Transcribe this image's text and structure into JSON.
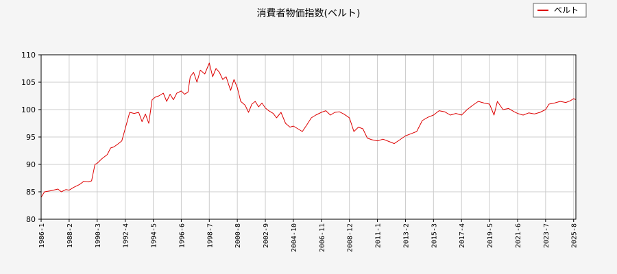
{
  "chart_data": {
    "type": "line",
    "title": "消費者物価指数(ベルト)",
    "xlabel": "",
    "ylabel": "",
    "xlim": [
      "1986-1",
      "2025-10"
    ],
    "ylim": [
      80,
      110
    ],
    "y_ticks": [
      80,
      85,
      90,
      95,
      100,
      105,
      110
    ],
    "x_ticks": [
      "1986-1",
      "1988-2",
      "1990-3",
      "1992-4",
      "1994-5",
      "1996-6",
      "1998-7",
      "2000-8",
      "2002-9",
      "2004-10",
      "2006-11",
      "2008-12",
      "2011-1",
      "2013-2",
      "2015-3",
      "2017-4",
      "2019-5",
      "2021-6",
      "2023-7",
      "2025-8"
    ],
    "grid": true,
    "legend_position": "top-right",
    "series": [
      {
        "name": "ベルト",
        "color": "#dd0000",
        "points": [
          [
            "1986-1",
            84.0
          ],
          [
            "1986-4",
            85.0
          ],
          [
            "1986-10",
            85.2
          ],
          [
            "1987-4",
            85.5
          ],
          [
            "1987-7",
            85.0
          ],
          [
            "1987-11",
            85.4
          ],
          [
            "1988-2",
            85.3
          ],
          [
            "1988-6",
            85.8
          ],
          [
            "1988-11",
            86.3
          ],
          [
            "1989-3",
            86.9
          ],
          [
            "1989-7",
            86.8
          ],
          [
            "1989-10",
            87.0
          ],
          [
            "1990-1",
            90.0
          ],
          [
            "1990-3",
            90.2
          ],
          [
            "1990-7",
            91.0
          ],
          [
            "1990-12",
            91.8
          ],
          [
            "1991-3",
            93.0
          ],
          [
            "1991-6",
            93.2
          ],
          [
            "1991-10",
            93.8
          ],
          [
            "1992-1",
            94.3
          ],
          [
            "1992-4",
            96.5
          ],
          [
            "1992-8",
            99.5
          ],
          [
            "1992-12",
            99.3
          ],
          [
            "1993-4",
            99.5
          ],
          [
            "1993-7",
            97.8
          ],
          [
            "1993-10",
            99.2
          ],
          [
            "1994-1",
            97.5
          ],
          [
            "1994-4",
            101.8
          ],
          [
            "1994-7",
            102.3
          ],
          [
            "1994-10",
            102.5
          ],
          [
            "1995-2",
            103.0
          ],
          [
            "1995-5",
            101.5
          ],
          [
            "1995-8",
            102.8
          ],
          [
            "1995-11",
            101.8
          ],
          [
            "1996-2",
            103.0
          ],
          [
            "1996-6",
            103.4
          ],
          [
            "1996-9",
            102.8
          ],
          [
            "1996-12",
            103.2
          ],
          [
            "1997-2",
            106.0
          ],
          [
            "1997-5",
            106.8
          ],
          [
            "1997-8",
            105.0
          ],
          [
            "1997-11",
            107.2
          ],
          [
            "1998-3",
            106.5
          ],
          [
            "1998-7",
            108.5
          ],
          [
            "1998-10",
            106.0
          ],
          [
            "1999-1",
            107.5
          ],
          [
            "1999-4",
            106.8
          ],
          [
            "1999-7",
            105.5
          ],
          [
            "1999-10",
            106.0
          ],
          [
            "2000-2",
            103.5
          ],
          [
            "2000-5",
            105.5
          ],
          [
            "2000-8",
            104.0
          ],
          [
            "2000-11",
            101.5
          ],
          [
            "2001-3",
            100.8
          ],
          [
            "2001-6",
            99.5
          ],
          [
            "2001-9",
            101.0
          ],
          [
            "2001-12",
            101.5
          ],
          [
            "2002-3",
            100.5
          ],
          [
            "2002-6",
            101.2
          ],
          [
            "2002-9",
            100.3
          ],
          [
            "2002-12",
            99.8
          ],
          [
            "2003-4",
            99.3
          ],
          [
            "2003-7",
            98.5
          ],
          [
            "2003-11",
            99.5
          ],
          [
            "2004-3",
            97.5
          ],
          [
            "2004-7",
            96.8
          ],
          [
            "2004-10",
            97.0
          ],
          [
            "2005-2",
            96.5
          ],
          [
            "2005-6",
            96.0
          ],
          [
            "2005-10",
            97.2
          ],
          [
            "2006-2",
            98.5
          ],
          [
            "2006-6",
            99.0
          ],
          [
            "2006-11",
            99.5
          ],
          [
            "2007-3",
            99.8
          ],
          [
            "2007-7",
            99.0
          ],
          [
            "2007-11",
            99.5
          ],
          [
            "2008-3",
            99.6
          ],
          [
            "2008-7",
            99.2
          ],
          [
            "2008-12",
            98.5
          ],
          [
            "2009-4",
            96.0
          ],
          [
            "2009-8",
            96.8
          ],
          [
            "2009-12",
            96.5
          ],
          [
            "2010-4",
            94.8
          ],
          [
            "2010-8",
            94.5
          ],
          [
            "2011-1",
            94.3
          ],
          [
            "2011-6",
            94.6
          ],
          [
            "2011-11",
            94.2
          ],
          [
            "2012-4",
            93.8
          ],
          [
            "2012-9",
            94.5
          ],
          [
            "2013-2",
            95.2
          ],
          [
            "2013-7",
            95.6
          ],
          [
            "2013-12",
            96.0
          ],
          [
            "2014-5",
            98.0
          ],
          [
            "2014-10",
            98.6
          ],
          [
            "2015-3",
            99.0
          ],
          [
            "2015-8",
            99.8
          ],
          [
            "2016-1",
            99.6
          ],
          [
            "2016-6",
            99.0
          ],
          [
            "2016-11",
            99.3
          ],
          [
            "2017-4",
            99.0
          ],
          [
            "2017-9",
            100.0
          ],
          [
            "2018-2",
            100.8
          ],
          [
            "2018-7",
            101.5
          ],
          [
            "2018-12",
            101.2
          ],
          [
            "2019-5",
            101.0
          ],
          [
            "2019-9",
            99.0
          ],
          [
            "2019-12",
            101.5
          ],
          [
            "2020-5",
            100.0
          ],
          [
            "2020-10",
            100.2
          ],
          [
            "2021-3",
            99.6
          ],
          [
            "2021-6",
            99.3
          ],
          [
            "2021-11",
            99.0
          ],
          [
            "2022-4",
            99.4
          ],
          [
            "2022-9",
            99.2
          ],
          [
            "2023-2",
            99.5
          ],
          [
            "2023-7",
            100.0
          ],
          [
            "2023-10",
            101.0
          ],
          [
            "2024-3",
            101.2
          ],
          [
            "2024-8",
            101.5
          ],
          [
            "2025-1",
            101.3
          ],
          [
            "2025-5",
            101.6
          ],
          [
            "2025-8",
            102.0
          ],
          [
            "2025-10",
            101.8
          ]
        ]
      }
    ]
  }
}
